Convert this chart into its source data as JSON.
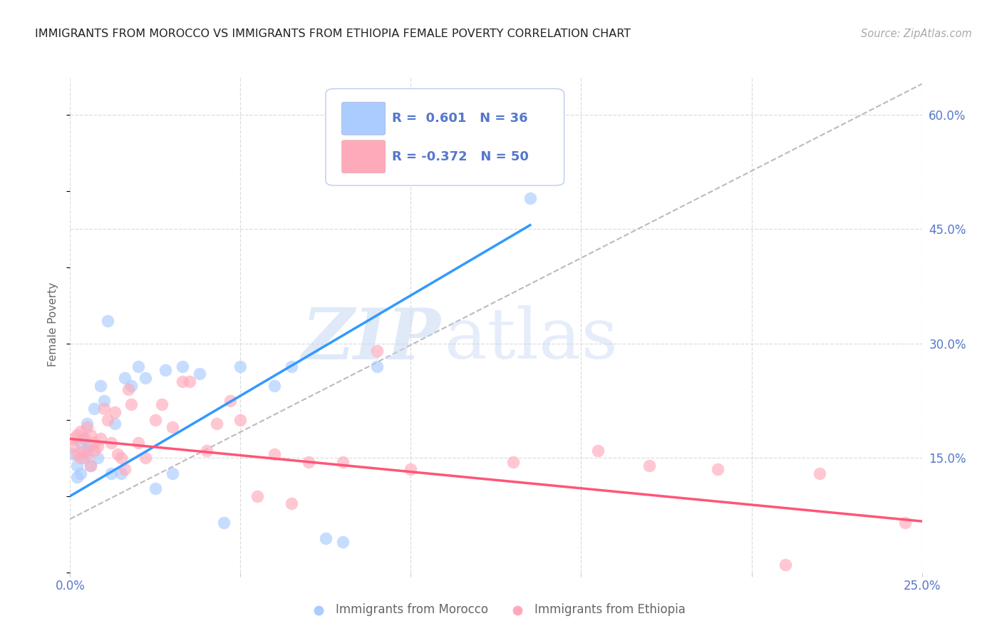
{
  "title": "IMMIGRANTS FROM MOROCCO VS IMMIGRANTS FROM ETHIOPIA FEMALE POVERTY CORRELATION CHART",
  "source": "Source: ZipAtlas.com",
  "ylabel": "Female Poverty",
  "xlim": [
    0.0,
    0.25
  ],
  "ylim": [
    0.0,
    0.65
  ],
  "yticks": [
    0.15,
    0.3,
    0.45,
    0.6
  ],
  "ytick_labels": [
    "15.0%",
    "30.0%",
    "45.0%",
    "60.0%"
  ],
  "xticks": [
    0.0,
    0.05,
    0.1,
    0.15,
    0.2,
    0.25
  ],
  "xtick_labels": [
    "0.0%",
    "",
    "",
    "",
    "",
    "25.0%"
  ],
  "morocco_color": "#aaccff",
  "ethiopia_color": "#ffaabb",
  "trend_morocco_color": "#3399ff",
  "trend_ethiopia_color": "#ff5577",
  "ref_line_color": "#bbbbbb",
  "r_morocco": 0.601,
  "n_morocco": 36,
  "r_ethiopia": -0.372,
  "n_ethiopia": 50,
  "morocco_x": [
    0.001,
    0.002,
    0.002,
    0.003,
    0.003,
    0.004,
    0.004,
    0.005,
    0.005,
    0.006,
    0.006,
    0.007,
    0.008,
    0.009,
    0.01,
    0.011,
    0.012,
    0.013,
    0.015,
    0.016,
    0.018,
    0.02,
    0.022,
    0.025,
    0.028,
    0.03,
    0.033,
    0.038,
    0.045,
    0.05,
    0.06,
    0.065,
    0.075,
    0.08,
    0.09,
    0.135
  ],
  "morocco_y": [
    0.155,
    0.14,
    0.125,
    0.17,
    0.13,
    0.175,
    0.15,
    0.195,
    0.16,
    0.165,
    0.14,
    0.215,
    0.15,
    0.245,
    0.225,
    0.33,
    0.13,
    0.195,
    0.13,
    0.255,
    0.245,
    0.27,
    0.255,
    0.11,
    0.265,
    0.13,
    0.27,
    0.26,
    0.065,
    0.27,
    0.245,
    0.27,
    0.045,
    0.04,
    0.27,
    0.49
  ],
  "ethiopia_x": [
    0.001,
    0.001,
    0.002,
    0.002,
    0.003,
    0.003,
    0.004,
    0.004,
    0.005,
    0.005,
    0.006,
    0.006,
    0.007,
    0.007,
    0.008,
    0.009,
    0.01,
    0.011,
    0.012,
    0.013,
    0.014,
    0.015,
    0.016,
    0.017,
    0.018,
    0.02,
    0.022,
    0.025,
    0.027,
    0.03,
    0.033,
    0.035,
    0.04,
    0.043,
    0.047,
    0.05,
    0.055,
    0.06,
    0.065,
    0.07,
    0.08,
    0.09,
    0.1,
    0.13,
    0.155,
    0.17,
    0.19,
    0.21,
    0.22,
    0.245
  ],
  "ethiopia_y": [
    0.175,
    0.165,
    0.18,
    0.155,
    0.185,
    0.15,
    0.175,
    0.16,
    0.19,
    0.155,
    0.18,
    0.14,
    0.17,
    0.16,
    0.165,
    0.175,
    0.215,
    0.2,
    0.17,
    0.21,
    0.155,
    0.15,
    0.135,
    0.24,
    0.22,
    0.17,
    0.15,
    0.2,
    0.22,
    0.19,
    0.25,
    0.25,
    0.16,
    0.195,
    0.225,
    0.2,
    0.1,
    0.155,
    0.09,
    0.145,
    0.145,
    0.29,
    0.135,
    0.145,
    0.16,
    0.14,
    0.135,
    0.01,
    0.13,
    0.065
  ],
  "watermark_zip": "ZIP",
  "watermark_atlas": "atlas",
  "background_color": "#ffffff",
  "grid_color": "#dddddd",
  "title_color": "#222222",
  "tick_label_color": "#5577cc",
  "label_color": "#666666"
}
